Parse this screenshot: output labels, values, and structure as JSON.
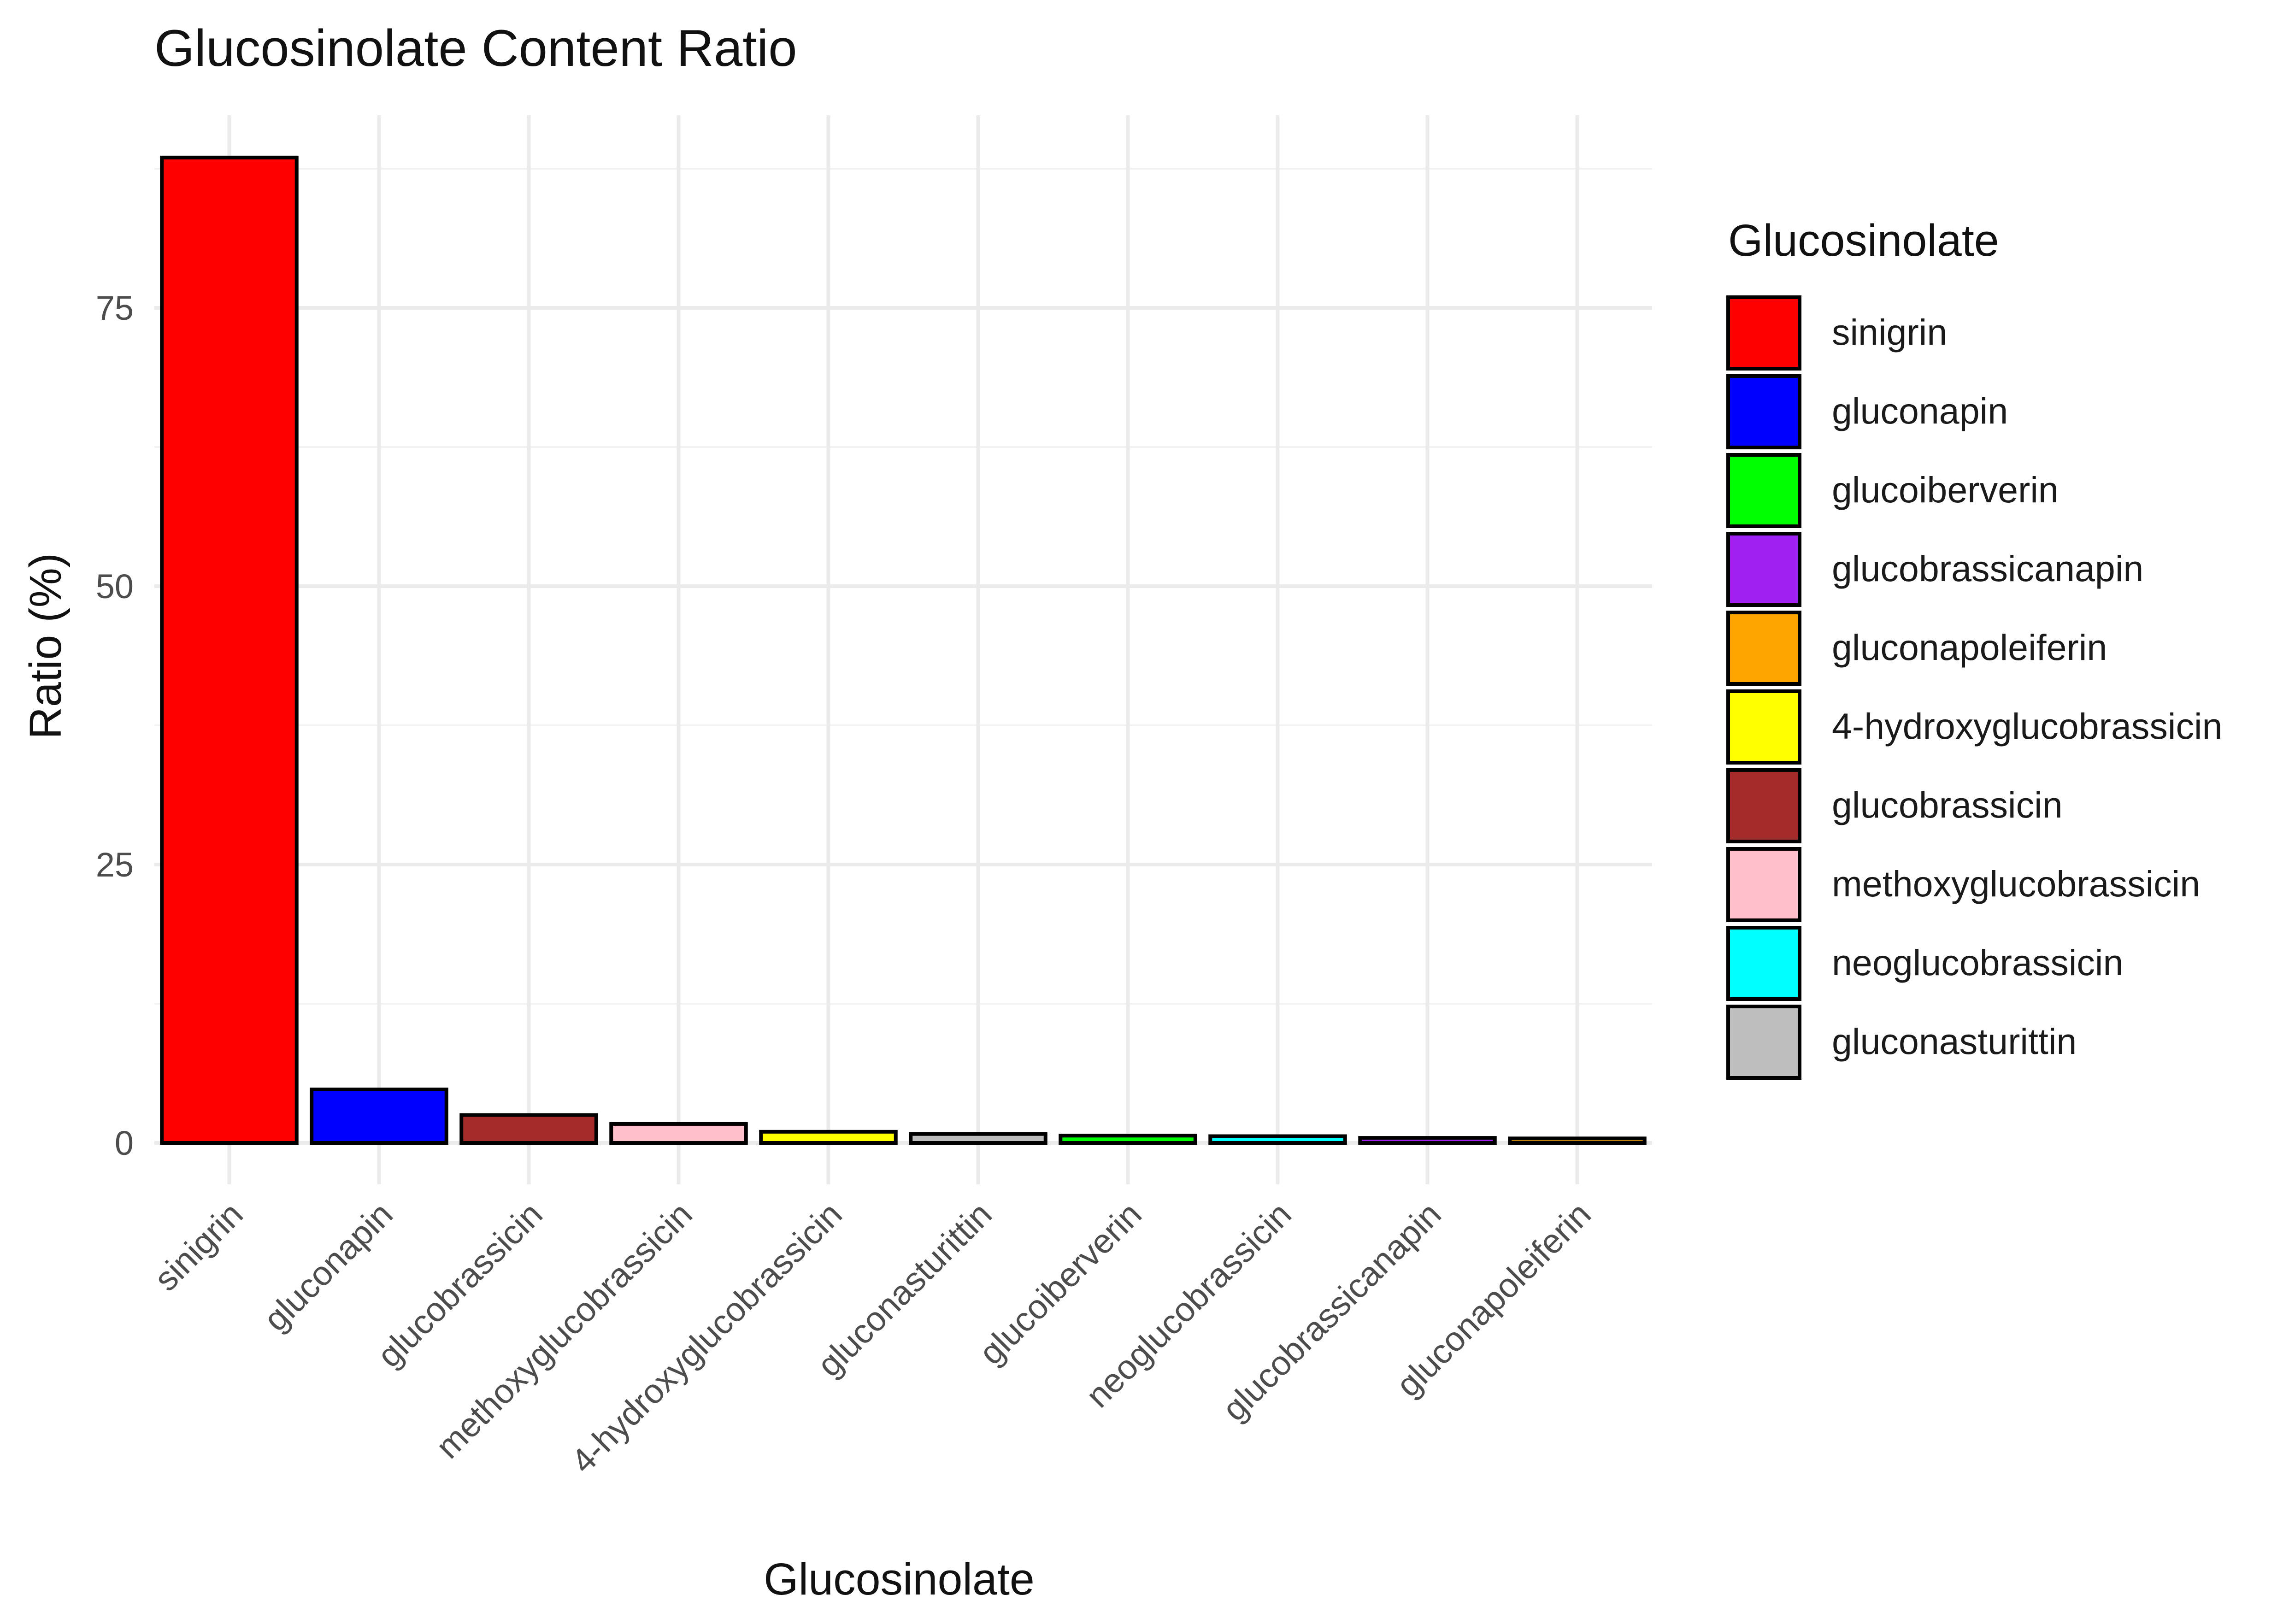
{
  "chart_data": {
    "type": "bar",
    "title": "Glucosinolate Content Ratio",
    "xlabel": "Glucosinolate",
    "ylabel": "Ratio (%)",
    "ylim": [
      0,
      90
    ],
    "yticks": [
      0,
      25,
      50,
      75
    ],
    "grid": true,
    "legend": {
      "title": "Glucosinolate",
      "position": "right"
    },
    "categories": [
      "sinigrin",
      "gluconapin",
      "glucobrassicin",
      "methoxyglucobrassicin",
      "4-hydroxyglucobrassicin",
      "gluconasturittin",
      "glucoiberverin",
      "neoglucobrassicin",
      "glucobrassicanapin",
      "gluconapoleiferin"
    ],
    "values": [
      88.5,
      4.8,
      2.5,
      1.7,
      1.0,
      0.8,
      0.65,
      0.6,
      0.45,
      0.4
    ],
    "series_colors": {
      "sinigrin": "#ff0000",
      "gluconapin": "#0000ff",
      "glucoiberverin": "#00ff00",
      "glucobrassicanapin": "#a020f0",
      "gluconapoleiferin": "#ffa500",
      "4-hydroxyglucobrassicin": "#ffff00",
      "glucobrassicin": "#a52a2a",
      "methoxyglucobrassicin": "#ffc0cb",
      "neoglucobrassicin": "#00ffff",
      "gluconasturittin": "#bebebe"
    },
    "legend_order": [
      "sinigrin",
      "gluconapin",
      "glucoiberverin",
      "glucobrassicanapin",
      "gluconapoleiferin",
      "4-hydroxyglucobrassicin",
      "glucobrassicin",
      "methoxyglucobrassicin",
      "neoglucobrassicin",
      "gluconasturittin"
    ]
  }
}
